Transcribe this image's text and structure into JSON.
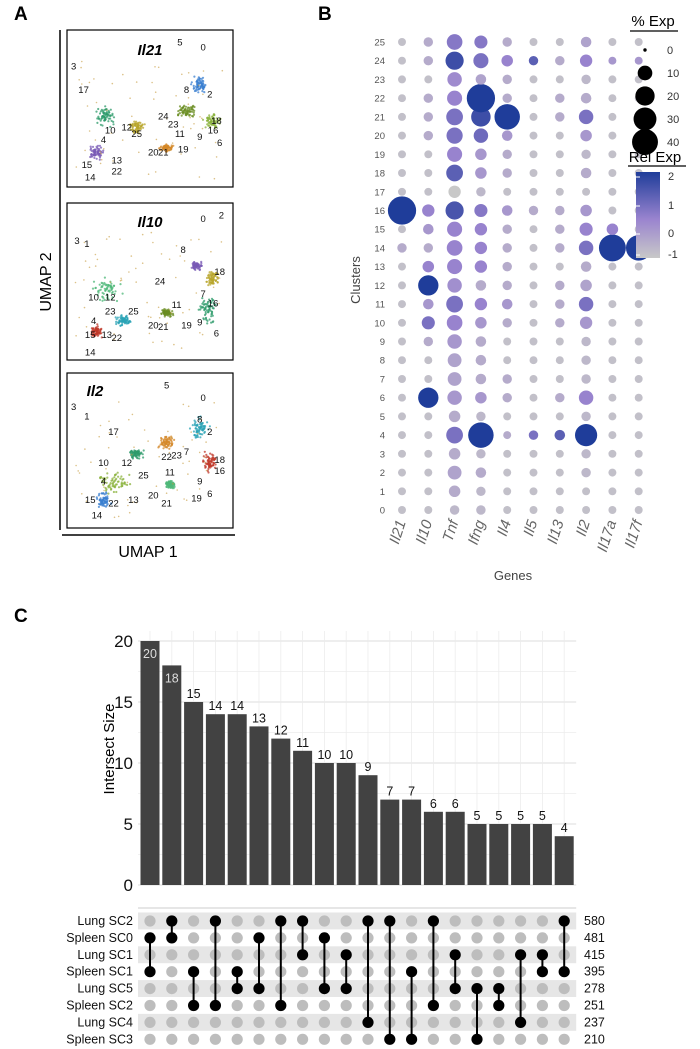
{
  "panels": {
    "a": {
      "letter": "A",
      "xaxis_label": "UMAP 1",
      "yaxis_label": "UMAP 2",
      "umaps": [
        {
          "gene": "Il21",
          "labels": [
            "5",
            "0",
            "3",
            "17",
            "8",
            "2",
            "10",
            "12",
            "24",
            "23",
            "18",
            "25",
            "11",
            "16",
            "9",
            "6",
            "20",
            "21",
            "19",
            "4",
            "13",
            "15",
            "22",
            "14"
          ]
        },
        {
          "gene": "Il10",
          "labels": [
            "0",
            "2",
            "3",
            "1",
            "8",
            "18",
            "24",
            "7",
            "11",
            "16",
            "10",
            "12",
            "23",
            "25",
            "4",
            "22",
            "20",
            "21",
            "19",
            "9",
            "6",
            "15",
            "13",
            "14"
          ]
        },
        {
          "gene": "Il2",
          "labels": [
            "5",
            "0",
            "3",
            "1",
            "17",
            "8",
            "2",
            "18",
            "16",
            "10",
            "12",
            "22",
            "23",
            "7",
            "11",
            "25",
            "9",
            "6",
            "20",
            "19",
            "4",
            "21",
            "15",
            "22",
            "13",
            "14"
          ]
        }
      ]
    },
    "b": {
      "letter": "B",
      "chart_data": {
        "type": "dotplot",
        "xlabel": "Genes",
        "ylabel": "Clusters",
        "genes": [
          "Il21",
          "Il10",
          "Tnf",
          "Ifng",
          "Il4",
          "Il5",
          "Il13",
          "Il2",
          "Il17a",
          "Il17f"
        ],
        "clusters": [
          "0",
          "1",
          "2",
          "3",
          "4",
          "5",
          "6",
          "7",
          "8",
          "9",
          "10",
          "11",
          "12",
          "13",
          "14",
          "15",
          "16",
          "17",
          "18",
          "19",
          "20",
          "21",
          "22",
          "23",
          "24",
          "25"
        ],
        "pct_exp": [
          [
            1,
            1,
            2,
            2,
            1,
            1,
            1,
            1,
            1,
            1
          ],
          [
            1,
            1,
            4,
            2,
            1,
            1,
            1,
            1,
            1,
            1
          ],
          [
            1,
            1,
            7,
            3,
            1,
            1,
            1,
            2,
            1,
            1
          ],
          [
            1,
            1,
            4,
            2,
            1,
            1,
            1,
            2,
            1,
            1
          ],
          [
            1,
            1,
            12,
            35,
            1,
            2,
            3,
            25,
            1,
            1
          ],
          [
            1,
            1,
            4,
            2,
            1,
            1,
            1,
            2,
            1,
            1
          ],
          [
            1,
            20,
            8,
            4,
            2,
            1,
            2,
            8,
            1,
            1
          ],
          [
            1,
            1,
            7,
            3,
            2,
            1,
            1,
            2,
            1,
            1
          ],
          [
            1,
            1,
            7,
            3,
            1,
            1,
            1,
            2,
            1,
            1
          ],
          [
            1,
            2,
            8,
            3,
            1,
            1,
            1,
            2,
            1,
            1
          ],
          [
            1,
            6,
            10,
            4,
            2,
            1,
            2,
            5,
            1,
            1
          ],
          [
            1,
            3,
            12,
            5,
            3,
            1,
            2,
            8,
            1,
            1
          ],
          [
            1,
            20,
            8,
            3,
            2,
            1,
            2,
            4,
            1,
            1
          ],
          [
            1,
            4,
            9,
            5,
            2,
            1,
            1,
            3,
            1,
            1
          ],
          [
            2,
            2,
            10,
            5,
            2,
            1,
            2,
            8,
            40,
            35
          ],
          [
            1,
            3,
            9,
            5,
            2,
            1,
            2,
            6,
            4,
            1
          ],
          [
            45,
            5,
            15,
            6,
            3,
            2,
            2,
            4,
            1,
            1
          ],
          [
            1,
            1,
            5,
            2,
            1,
            1,
            1,
            1,
            1,
            1
          ],
          [
            1,
            1,
            12,
            4,
            2,
            1,
            1,
            3,
            1,
            1
          ],
          [
            1,
            1,
            9,
            4,
            2,
            1,
            1,
            2,
            1,
            1
          ],
          [
            1,
            2,
            11,
            8,
            3,
            1,
            1,
            4,
            1,
            1
          ],
          [
            1,
            2,
            12,
            18,
            35,
            1,
            2,
            8,
            1,
            1
          ],
          [
            1,
            2,
            9,
            45,
            2,
            1,
            2,
            3,
            1,
            1
          ],
          [
            1,
            1,
            8,
            3,
            2,
            1,
            1,
            2,
            1,
            1
          ],
          [
            1,
            2,
            15,
            9,
            4,
            2,
            2,
            5,
            1,
            1
          ],
          [
            1,
            2,
            10,
            6,
            2,
            1,
            1,
            3,
            1,
            1
          ]
        ],
        "rel_exp": [
          [
            -1,
            -1,
            -0.8,
            -0.8,
            -1,
            -1,
            -1,
            -1,
            -1,
            -1
          ],
          [
            -1,
            -1,
            -0.5,
            -0.8,
            -1,
            -1,
            -1,
            -1,
            -1,
            -1
          ],
          [
            -1,
            -1,
            -0.3,
            -0.5,
            -1,
            -1,
            -1,
            -0.8,
            -1,
            -1
          ],
          [
            -1,
            -1,
            -0.5,
            -0.8,
            -1,
            -1,
            -1,
            -0.8,
            -1,
            -1
          ],
          [
            -1,
            -1,
            1,
            2.5,
            -0.5,
            1,
            1.5,
            2.5,
            -1,
            -1
          ],
          [
            -1,
            -1,
            -0.5,
            -0.8,
            -1,
            -1,
            -1,
            -0.8,
            -1,
            -1
          ],
          [
            -1,
            2.5,
            0,
            0,
            -0.5,
            -1,
            -0.5,
            0.5,
            -1,
            -1
          ],
          [
            -1,
            -1,
            -0.3,
            -0.5,
            -0.5,
            -1,
            -1,
            -0.8,
            -1,
            -1
          ],
          [
            -1,
            -1,
            -0.3,
            -0.5,
            -1,
            -1,
            -1,
            -0.8,
            -1,
            -1
          ],
          [
            -1,
            -0.5,
            0,
            -0.5,
            -1,
            -1,
            -1,
            -0.8,
            -1,
            -1
          ],
          [
            -1,
            1,
            0.5,
            0,
            -0.5,
            -1,
            -0.5,
            0,
            -1,
            -1
          ],
          [
            -1,
            0,
            1,
            0.5,
            0,
            -1,
            -0.5,
            1,
            -1,
            -1
          ],
          [
            -1,
            2.5,
            0.2,
            -0.5,
            -0.5,
            -1,
            -0.5,
            -0.3,
            -1,
            -1
          ],
          [
            -1,
            0.5,
            0.5,
            0.5,
            -0.5,
            -1,
            -1,
            -0.5,
            -1,
            -1
          ],
          [
            -0.5,
            -0.5,
            0.5,
            0.5,
            -0.5,
            -1,
            -0.5,
            1,
            2.5,
            2.5
          ],
          [
            -1,
            0,
            0.5,
            0.5,
            -0.5,
            -1,
            -0.5,
            0.5,
            0.5,
            -1
          ],
          [
            2.5,
            0.5,
            1.8,
            0.8,
            0,
            -0.5,
            -0.5,
            0,
            -1,
            -1
          ],
          [
            -1,
            -1,
            -1.2,
            -0.8,
            -1,
            -1,
            -1,
            -1,
            -1,
            -1
          ],
          [
            -1,
            -1,
            1.5,
            0,
            -0.5,
            -1,
            -1,
            -0.5,
            -1,
            -1
          ],
          [
            -1,
            -1,
            0.5,
            0,
            -0.5,
            -1,
            -1,
            -0.8,
            -1,
            -1
          ],
          [
            -1,
            -0.5,
            1,
            1.2,
            0,
            -1,
            -1,
            0,
            -1,
            -1
          ],
          [
            -1,
            -0.5,
            1,
            2,
            2.5,
            -1,
            -0.5,
            1,
            -1,
            -1
          ],
          [
            -1,
            -0.5,
            0.5,
            2.5,
            -0.5,
            -1,
            -0.5,
            -0.5,
            -1,
            -1
          ],
          [
            -1,
            -1,
            0.3,
            -0.3,
            -0.5,
            -1,
            -1,
            -0.8,
            -1,
            -1
          ],
          [
            -1,
            -0.5,
            2,
            1,
            0.5,
            1.5,
            -0.5,
            0.5,
            0,
            0
          ],
          [
            -1,
            -0.5,
            0.8,
            0.8,
            -0.5,
            -1,
            -1,
            -0.3,
            -1,
            -1
          ]
        ],
        "legend_size_title": "% Exp",
        "legend_size_values": [
          0,
          10,
          20,
          30,
          40
        ],
        "legend_color_title": "Rel Exp",
        "legend_color_ticks": [
          "2",
          "1",
          "0",
          "-1"
        ],
        "color_low": "#c8c8c8",
        "color_high": "#1f3d9a"
      }
    },
    "c": {
      "letter": "C",
      "chart_data": {
        "type": "upset",
        "ylabel": "Intersect Size",
        "ylim": [
          0,
          20
        ],
        "yticks": [
          "0",
          "5",
          "10",
          "15",
          "20"
        ],
        "values": [
          20,
          18,
          15,
          14,
          14,
          13,
          12,
          11,
          10,
          10,
          9,
          7,
          7,
          6,
          6,
          5,
          5,
          5,
          5,
          4
        ],
        "sets": [
          "Lung SC2",
          "Spleen SC0",
          "Lung SC1",
          "Spleen SC1",
          "Lung SC5",
          "Spleen SC2",
          "Lung SC4",
          "Spleen SC3"
        ],
        "set_sizes": [
          "580",
          "481",
          "415",
          "395",
          "278",
          "251",
          "237",
          "210"
        ],
        "memberships": [
          [
            1,
            3
          ],
          [
            0,
            1
          ],
          [
            3,
            5
          ],
          [
            0,
            5
          ],
          [
            3,
            4
          ],
          [
            1,
            4
          ],
          [
            0,
            5
          ],
          [
            0,
            2
          ],
          [
            1,
            4
          ],
          [
            2,
            4
          ],
          [
            0,
            6
          ],
          [
            0,
            7
          ],
          [
            3,
            7
          ],
          [
            0,
            5
          ],
          [
            2,
            4
          ],
          [
            4,
            7
          ],
          [
            4,
            5
          ],
          [
            2,
            6
          ],
          [
            2,
            3
          ],
          [
            0,
            3
          ]
        ]
      }
    }
  }
}
